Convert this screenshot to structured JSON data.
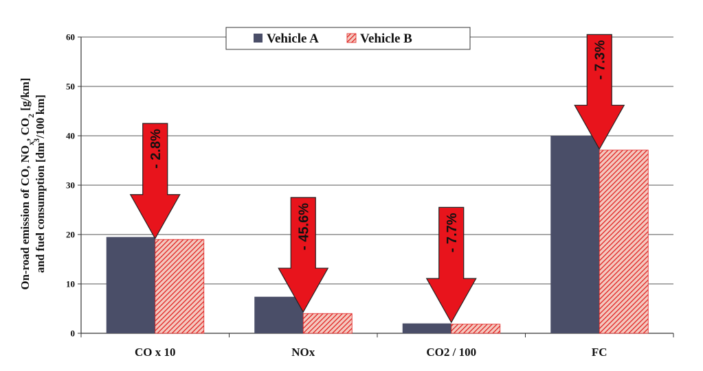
{
  "chart_data": {
    "type": "bar",
    "categories": [
      "CO x 10",
      "NOx",
      "CO2 / 100",
      "FC"
    ],
    "series": [
      {
        "name": "Vehicle A",
        "values": [
          19.5,
          7.4,
          2.0,
          40.0
        ],
        "color": "#4a4e68",
        "pattern": "solid"
      },
      {
        "name": "Vehicle B",
        "values": [
          19.0,
          4.0,
          1.85,
          37.1
        ],
        "color": "#e0201f",
        "pattern": "hatch"
      }
    ],
    "ylim": [
      0,
      60
    ],
    "yticks": [
      0,
      10,
      20,
      30,
      40,
      50,
      60
    ],
    "ylabel": {
      "line1_prefix": "On-road emission of  CO, NO",
      "line1_sub1": "x",
      "line1_mid": ", CO",
      "line1_sub2": "2",
      "line1_suffix": " [g/km]",
      "line2_prefix": "and  fuel consumption  [dm",
      "line2_sup": "3",
      "line2_suffix": "/100 km]"
    },
    "annotations": [
      {
        "category": "CO x 10",
        "text": "- 2.8%",
        "arrow_top": 42.5,
        "arrow_tip": 19.2
      },
      {
        "category": "NOx",
        "text": "- 45.6%",
        "arrow_top": 27.5,
        "arrow_tip": 4.3
      },
      {
        "category": "CO2 / 100",
        "text": "- 7.7%",
        "arrow_top": 25.5,
        "arrow_tip": 2.2
      },
      {
        "category": "FC",
        "text": "- 7.3%",
        "arrow_top": 60.5,
        "arrow_tip": 37.3
      }
    ],
    "arrow_color": "#e8141c",
    "legend_position": "top",
    "grid": true
  }
}
